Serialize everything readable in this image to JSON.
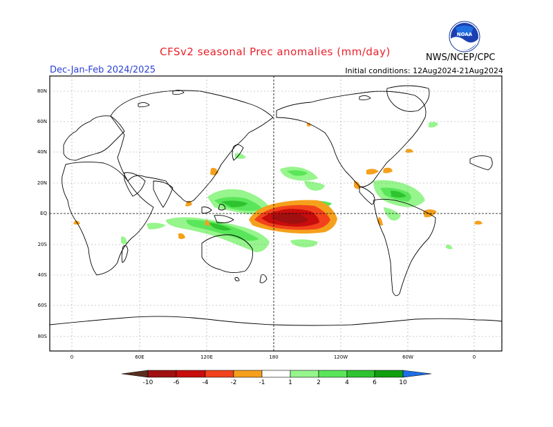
{
  "header": {
    "title": "CFSv2 seasonal Prec anomalies (mm/day)",
    "season": "Dec-Jan-Feb 2024/2025",
    "initial_conditions": "Initial conditions: 12Aug2024-21Aug2024",
    "agency": "NWS/NCEP/CPC",
    "logo_text": "NOAA"
  },
  "map": {
    "lat_labels": [
      "80N",
      "60N",
      "40N",
      "20N",
      "EQ",
      "20S",
      "40S",
      "60S",
      "80S"
    ],
    "lon_labels": [
      "0",
      "60E",
      "120E",
      "180",
      "120W",
      "60W",
      "0"
    ]
  },
  "colorbar": {
    "labels": [
      "-10",
      "-6",
      "-4",
      "-2",
      "-1",
      "1",
      "2",
      "4",
      "6",
      "10"
    ],
    "colors": {
      "lt_-10": "#5a2e1e",
      "-10_-6": "#a01010",
      "-6_-4": "#c80d0d",
      "-4_-2": "#f2421b",
      "-2_-1": "#f5a01c",
      "-1_1": "#ffffff",
      "1_2": "#96f58c",
      "2_4": "#5ae65a",
      "4_6": "#2fc42f",
      "6_10": "#10a010",
      "gt_10": "#1e6fe6"
    }
  }
}
